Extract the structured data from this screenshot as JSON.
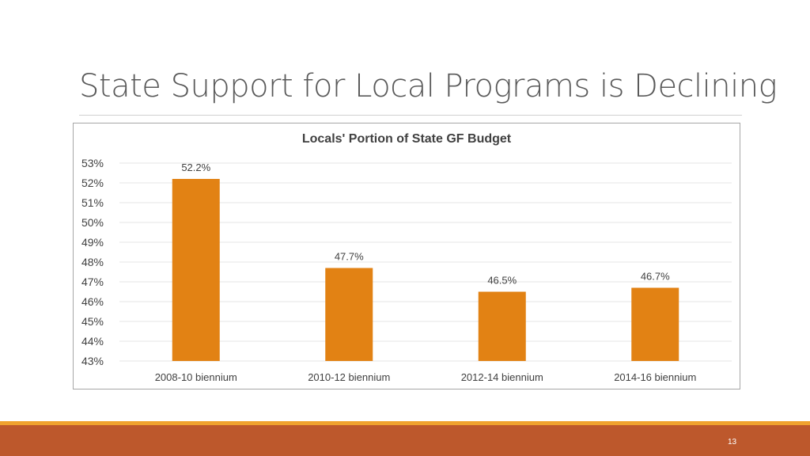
{
  "slide": {
    "title": "State Support for Local Programs is Declining",
    "page_number": "13"
  },
  "colors": {
    "bar": "#e28214",
    "gridline": "#e6e6e6",
    "footer_bar": "#bd582c",
    "footer_accent": "#f0a22e"
  },
  "chart_data": {
    "type": "bar",
    "title": "Locals' Portion of State GF Budget",
    "categories": [
      "2008-10 biennium",
      "2010-12 biennium",
      "2012-14 biennium",
      "2014-16 biennium"
    ],
    "values": [
      52.2,
      47.7,
      46.5,
      46.7
    ],
    "data_labels": [
      "52.2%",
      "47.7%",
      "46.5%",
      "46.7%"
    ],
    "ylim": [
      43,
      53
    ],
    "y_ticks": [
      43,
      44,
      45,
      46,
      47,
      48,
      49,
      50,
      51,
      52,
      53
    ],
    "y_tick_labels": [
      "43%",
      "44%",
      "45%",
      "46%",
      "47%",
      "48%",
      "49%",
      "50%",
      "51%",
      "52%",
      "53%"
    ],
    "xlabel": "",
    "ylabel": "",
    "grid": true,
    "legend": "none"
  }
}
